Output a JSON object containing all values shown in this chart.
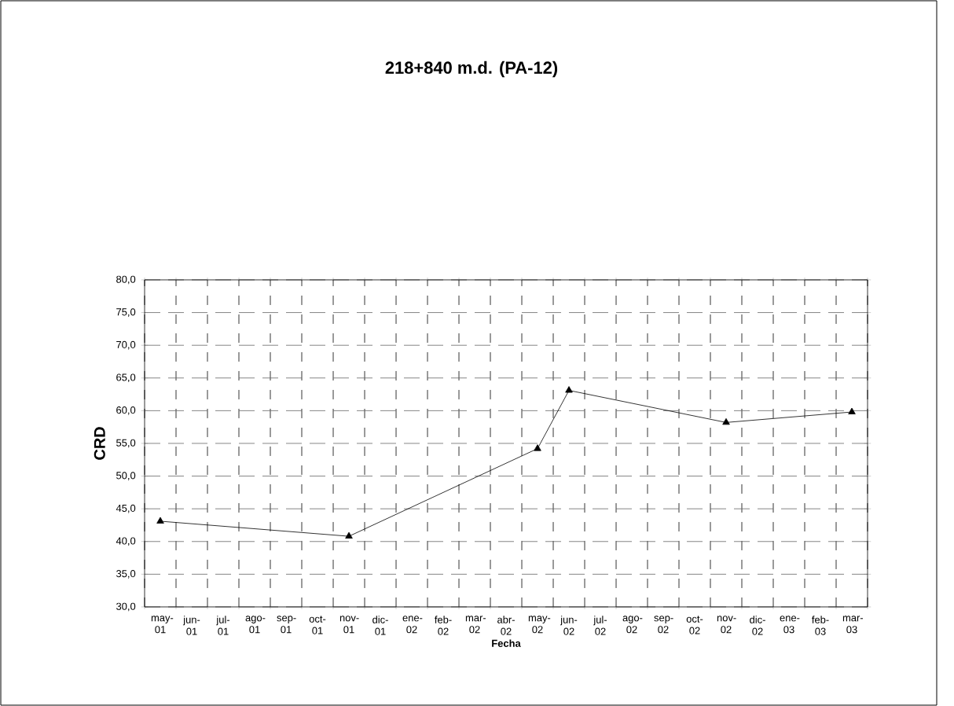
{
  "chart_data": {
    "type": "line",
    "title": "218+840 m.d. (PA-12)",
    "xlabel": "Fecha",
    "ylabel": "CRD",
    "categories": [
      "may-01",
      "jun-01",
      "jul-01",
      "ago-01",
      "sep-01",
      "oct-01",
      "nov-01",
      "dic-01",
      "ene-02",
      "feb-02",
      "mar-02",
      "abr-02",
      "may-02",
      "jun-02",
      "jul-02",
      "ago-02",
      "sep-02",
      "oct-02",
      "nov-02",
      "dic-02",
      "ene-03",
      "feb-03",
      "mar-03"
    ],
    "values": [
      43.1,
      null,
      null,
      null,
      null,
      null,
      40.8,
      null,
      null,
      null,
      null,
      null,
      54.2,
      63.1,
      null,
      null,
      null,
      null,
      58.2,
      null,
      null,
      null,
      59.8
    ],
    "color": "#000000",
    "marker": "triangle",
    "line_style": "solid",
    "grid": true,
    "ylim": [
      30,
      80
    ],
    "yticks": [
      {
        "value": 30,
        "label": "30,0"
      },
      {
        "value": 35,
        "label": "35,0"
      },
      {
        "value": 40,
        "label": "40,0"
      },
      {
        "value": 45,
        "label": "45,0"
      },
      {
        "value": 50,
        "label": "50,0"
      },
      {
        "value": 55,
        "label": "55,0"
      },
      {
        "value": 60,
        "label": "60,0"
      },
      {
        "value": 65,
        "label": "65,0"
      },
      {
        "value": 70,
        "label": "70,0"
      },
      {
        "value": 75,
        "label": "75,0"
      },
      {
        "value": 80,
        "label": "80,0"
      }
    ]
  }
}
